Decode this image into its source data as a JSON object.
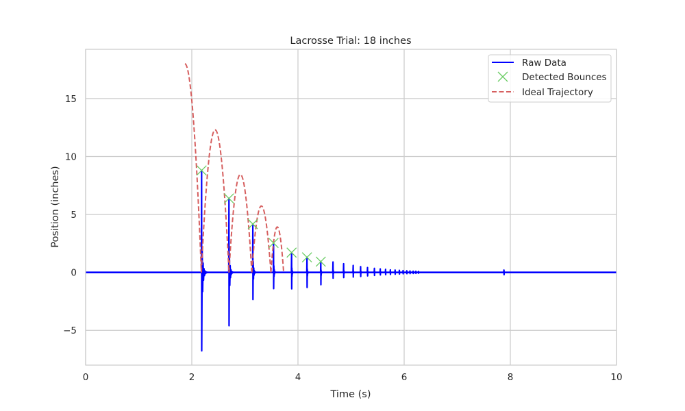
{
  "chart_data": {
    "type": "line",
    "title": "Lacrosse Trial: 18 inches",
    "xlabel": "Time (s)",
    "ylabel": "Position (inches)",
    "xlim": [
      0,
      10
    ],
    "ylim": [
      -8,
      19.25
    ],
    "xticks": [
      0,
      2,
      4,
      6,
      8,
      10
    ],
    "xtick_labels": [
      "0",
      "2",
      "4",
      "6",
      "8",
      "10"
    ],
    "yticks": [
      -5,
      0,
      5,
      10,
      15
    ],
    "ytick_labels": [
      "−5",
      "0",
      "5",
      "10",
      "15"
    ],
    "grid": true,
    "legend_position": "top-right",
    "series": [
      {
        "name": "Raw Data",
        "style": "line",
        "color": "#0000ff",
        "baseline": 0,
        "spikes": [
          {
            "t": 2.185,
            "max": 8.8,
            "min": -6.77
          },
          {
            "t": 2.7,
            "max": 6.38,
            "min": -4.6
          },
          {
            "t": 3.15,
            "max": 4.17,
            "min": -2.34
          },
          {
            "t": 3.54,
            "max": 2.54,
            "min": -1.4
          },
          {
            "t": 3.88,
            "max": 1.71,
            "min": -1.42
          },
          {
            "t": 4.17,
            "max": 1.3,
            "min": -1.3
          },
          {
            "t": 4.43,
            "max": 0.93,
            "min": -1.06
          },
          {
            "t": 4.66,
            "max": 0.9,
            "min": -0.5
          },
          {
            "t": 4.86,
            "max": 0.75,
            "min": -0.45
          },
          {
            "t": 5.04,
            "max": 0.6,
            "min": -0.4
          },
          {
            "t": 5.18,
            "max": 0.5,
            "min": -0.35
          },
          {
            "t": 5.31,
            "max": 0.42,
            "min": -0.3
          },
          {
            "t": 5.44,
            "max": 0.35,
            "min": -0.26
          },
          {
            "t": 5.55,
            "max": 0.3,
            "min": -0.22
          },
          {
            "t": 5.65,
            "max": 0.26,
            "min": -0.2
          },
          {
            "t": 5.74,
            "max": 0.22,
            "min": -0.18
          },
          {
            "t": 5.83,
            "max": 0.2,
            "min": -0.16
          },
          {
            "t": 5.91,
            "max": 0.18,
            "min": -0.14
          },
          {
            "t": 5.98,
            "max": 0.16,
            "min": -0.12
          },
          {
            "t": 6.05,
            "max": 0.14,
            "min": -0.11
          },
          {
            "t": 6.11,
            "max": 0.12,
            "min": -0.1
          },
          {
            "t": 6.17,
            "max": 0.1,
            "min": -0.09
          },
          {
            "t": 6.22,
            "max": 0.09,
            "min": -0.08
          },
          {
            "t": 6.27,
            "max": 0.08,
            "min": -0.07
          },
          {
            "t": 7.88,
            "max": 0.2,
            "min": -0.2
          }
        ]
      },
      {
        "name": "Detected Bounces",
        "style": "marker-x",
        "color": "#6acc64",
        "x": [
          2.185,
          2.7,
          3.15,
          3.54,
          3.88,
          4.17,
          4.43
        ],
        "y": [
          8.8,
          6.38,
          4.17,
          2.54,
          1.71,
          1.3,
          0.93
        ]
      },
      {
        "name": "Ideal Trajectory",
        "style": "dashed",
        "color": "#d65f5f",
        "start": {
          "t": 1.87,
          "y": 18.0
        },
        "arcs": [
          {
            "t0": 1.87,
            "t1": 2.18,
            "peak": 18.0,
            "peak_at_start": true
          },
          {
            "t0": 2.18,
            "t1": 2.7,
            "peak": 12.3
          },
          {
            "t0": 2.7,
            "t1": 3.13,
            "peak": 8.45
          },
          {
            "t0": 3.13,
            "t1": 3.49,
            "peak": 5.73
          },
          {
            "t0": 3.49,
            "t1": 3.73,
            "peak": 3.92
          }
        ]
      }
    ]
  }
}
